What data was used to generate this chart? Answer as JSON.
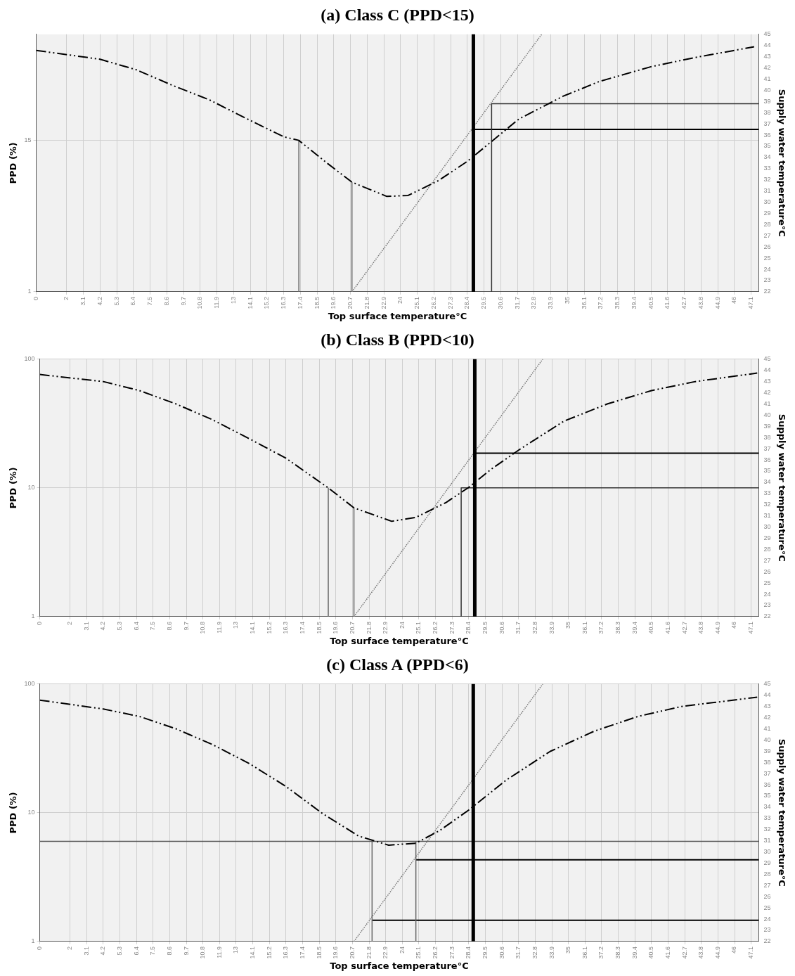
{
  "chart_data": [
    {
      "type": "line",
      "title": "(a) Class C (PPD<15)",
      "xlabel": "Top surface temperature°C",
      "ylabel": "PPD (%)",
      "y2label": "Supply water temperature°C",
      "log": "y",
      "grid": true,
      "legend": false,
      "xlim": [
        0,
        47.6
      ],
      "xticks": [
        0,
        2,
        3.1,
        4.2,
        5.3,
        6.4,
        7.5,
        8.6,
        9.7,
        10.8,
        11.9,
        13,
        14.1,
        15.2,
        16.3,
        17.4,
        18.5,
        19.6,
        20.7,
        21.8,
        22.9,
        24,
        25.1,
        26.2,
        27.3,
        28.4,
        29.5,
        30.6,
        31.7,
        32.8,
        33.9,
        35,
        36.1,
        37.2,
        38.3,
        39.4,
        40.5,
        41.6,
        42.7,
        43.8,
        44.9,
        46,
        47.1
      ],
      "ylim": [
        1,
        100
      ],
      "yticks": [
        1,
        15
      ],
      "y2lim": [
        22,
        45
      ],
      "y2ticks": [
        22,
        23,
        24,
        25,
        26,
        27,
        28,
        29,
        30,
        31,
        32,
        33,
        34,
        35,
        36,
        37,
        38,
        39,
        40,
        41,
        42,
        43,
        44,
        45
      ],
      "series": [
        {
          "type": "line",
          "color": "#000000",
          "line_style": "dashed",
          "x": [
            0,
            4.2,
            6.6,
            9.0,
            11.4,
            13.9,
            16.3,
            17.3,
            19.2,
            20.8,
            23.1,
            24.5,
            26.5,
            28.4,
            30.0,
            31.8,
            34.7,
            37.1,
            40.5,
            43.4,
            47.3
          ],
          "values": [
            75,
            64,
            53,
            40,
            31,
            22,
            16,
            15,
            9.9,
            7.1,
            5.5,
            5.6,
            7.3,
            10.3,
            14.7,
            22,
            33,
            43,
            56,
            66,
            80
          ]
        },
        {
          "type": "line",
          "axis": "y2",
          "color": "#777777",
          "line_style": "dotted",
          "x": [
            20.8,
            33.3
          ],
          "values": [
            22,
            45
          ]
        },
        {
          "type": "line",
          "color": "#666666",
          "line_style": "solid",
          "x": [
            17.3,
            17.3
          ],
          "values": [
            1,
            15
          ]
        },
        {
          "type": "line",
          "color": "#666666",
          "line_style": "solid",
          "x": [
            20.8,
            20.8
          ],
          "values": [
            1,
            7.1
          ]
        },
        {
          "type": "line",
          "axis": "y2",
          "color": "#333333",
          "line_style": "solid",
          "x": [
            30.0,
            30.0,
            47.6
          ],
          "values": [
            22,
            38.8,
            38.8
          ]
        },
        {
          "type": "line",
          "axis": "y2",
          "color": "#000000",
          "line_style": "solid",
          "x": [
            28.8,
            47.6
          ],
          "values": [
            36.5,
            36.5
          ]
        }
      ],
      "ref_lines": [
        {
          "axis": "x",
          "value": 28.8,
          "color": "#000000"
        }
      ]
    },
    {
      "type": "line",
      "title": "(b) Class B (PPD<10)",
      "xlabel": "Top surface temperature°C",
      "ylabel": "PPD (%)",
      "y2label": "Supply water temperature°C",
      "log": "y",
      "grid": true,
      "legend": false,
      "xlim": [
        0,
        47.6
      ],
      "xticks": [
        0,
        2,
        3.1,
        4.2,
        5.3,
        6.4,
        7.5,
        8.6,
        9.7,
        10.8,
        11.9,
        13,
        14.1,
        15.2,
        16.3,
        17.4,
        18.5,
        19.6,
        20.7,
        21.8,
        22.9,
        24,
        25.1,
        26.2,
        27.3,
        28.4,
        29.5,
        30.6,
        31.7,
        32.8,
        33.9,
        35,
        36.1,
        37.2,
        38.3,
        39.4,
        40.5,
        41.6,
        42.7,
        43.8,
        44.9,
        46,
        47.1
      ],
      "ylim": [
        1,
        100
      ],
      "yticks": [
        1,
        10,
        100
      ],
      "y2lim": [
        22,
        45
      ],
      "y2ticks": [
        22,
        23,
        24,
        25,
        26,
        27,
        28,
        29,
        30,
        31,
        32,
        33,
        34,
        35,
        36,
        37,
        38,
        39,
        40,
        41,
        42,
        43,
        44,
        45
      ],
      "series": [
        {
          "type": "line",
          "color": "#000000",
          "line_style": "dashed",
          "x": [
            0,
            4.2,
            6.6,
            9.0,
            11.4,
            13.9,
            16.3,
            19.1,
            20.8,
            23.3,
            24.9,
            26.9,
            28.4,
            29.9,
            31.8,
            34.7,
            37.6,
            40.5,
            43.4,
            47.5
          ],
          "values": [
            76,
            67,
            57,
            45,
            34,
            24,
            17,
            10,
            7.0,
            5.5,
            5.9,
            7.7,
            10.1,
            14,
            20,
            33,
            45,
            57,
            67,
            78
          ]
        },
        {
          "type": "line",
          "axis": "y2",
          "color": "#777777",
          "line_style": "dotted",
          "x": [
            20.8,
            33.3
          ],
          "values": [
            22,
            45
          ]
        },
        {
          "type": "line",
          "color": "#666666",
          "line_style": "solid",
          "x": [
            19.1,
            19.1
          ],
          "values": [
            1,
            10
          ]
        },
        {
          "type": "line",
          "color": "#666666",
          "line_style": "solid",
          "x": [
            20.8,
            20.8
          ],
          "values": [
            1,
            7.0
          ]
        },
        {
          "type": "line",
          "axis": "y2",
          "color": "#333333",
          "line_style": "solid",
          "x": [
            27.9,
            27.9,
            47.6
          ],
          "values": [
            22,
            33.5,
            33.5
          ]
        },
        {
          "type": "line",
          "axis": "y2",
          "color": "#000000",
          "line_style": "solid",
          "x": [
            28.8,
            47.6
          ],
          "values": [
            36.6,
            36.6
          ]
        }
      ],
      "ref_lines": [
        {
          "axis": "x",
          "value": 28.8,
          "color": "#000000"
        }
      ]
    },
    {
      "type": "line",
      "title": "(c) Class A (PPD<6)",
      "xlabel": "Top surface temperature°C",
      "ylabel": "PPD (%)",
      "y2label": "Supply water temperature°C",
      "log": "y",
      "grid": true,
      "legend": false,
      "xlim": [
        0,
        47.6
      ],
      "xticks": [
        0,
        2,
        3.1,
        4.2,
        5.3,
        6.4,
        7.5,
        8.6,
        9.7,
        10.8,
        11.9,
        13,
        14.1,
        15.2,
        16.3,
        17.4,
        18.5,
        19.6,
        20.7,
        21.8,
        22.9,
        24,
        25.1,
        26.2,
        27.3,
        28.4,
        29.5,
        30.6,
        31.7,
        32.8,
        33.9,
        35,
        36.1,
        37.2,
        38.3,
        39.4,
        40.5,
        41.6,
        42.7,
        43.8,
        44.9,
        46,
        47.1
      ],
      "ylim": [
        1,
        100
      ],
      "yticks": [
        1,
        10,
        100
      ],
      "y2lim": [
        22,
        45
      ],
      "y2ticks": [
        22,
        23,
        24,
        25,
        26,
        27,
        28,
        29,
        30,
        31,
        32,
        33,
        34,
        35,
        36,
        37,
        38,
        39,
        40,
        41,
        42,
        43,
        44,
        45
      ],
      "series": [
        {
          "type": "line",
          "color": "#000000",
          "line_style": "dashed",
          "x": [
            0,
            4.2,
            6.6,
            9.0,
            11.4,
            13.9,
            16.3,
            18.7,
            21.1,
            23.1,
            24.9,
            26.5,
            28.4,
            30.9,
            33.8,
            36.7,
            39.6,
            42.5,
            47.5
          ],
          "values": [
            75,
            64,
            56,
            45,
            34,
            24,
            16,
            9.9,
            6.6,
            5.6,
            5.8,
            7.3,
            10.5,
            18,
            30,
            43,
            56,
            67,
            79
          ]
        },
        {
          "type": "line",
          "axis": "y2",
          "color": "#777777",
          "line_style": "dotted",
          "x": [
            20.8,
            33.3
          ],
          "values": [
            22,
            45
          ]
        },
        {
          "type": "line",
          "color": "#555555",
          "line_style": "solid",
          "x": [
            0,
            47.6
          ],
          "values": [
            6,
            6
          ]
        },
        {
          "type": "line",
          "color": "#666666",
          "line_style": "solid",
          "x": [
            22.0,
            22.0
          ],
          "values": [
            1,
            6
          ]
        },
        {
          "type": "line",
          "color": "#666666",
          "line_style": "solid",
          "x": [
            24.9,
            24.9
          ],
          "values": [
            1,
            6
          ]
        },
        {
          "type": "line",
          "axis": "y2",
          "color": "#000000",
          "line_style": "solid",
          "x": [
            24.9,
            47.6
          ],
          "values": [
            29.3,
            29.3
          ]
        },
        {
          "type": "line",
          "axis": "y2",
          "color": "#000000",
          "line_style": "solid",
          "x": [
            22.0,
            47.6
          ],
          "values": [
            23.9,
            23.9
          ]
        }
      ],
      "ref_lines": [
        {
          "axis": "x",
          "value": 28.7,
          "color": "#000000"
        }
      ]
    }
  ]
}
